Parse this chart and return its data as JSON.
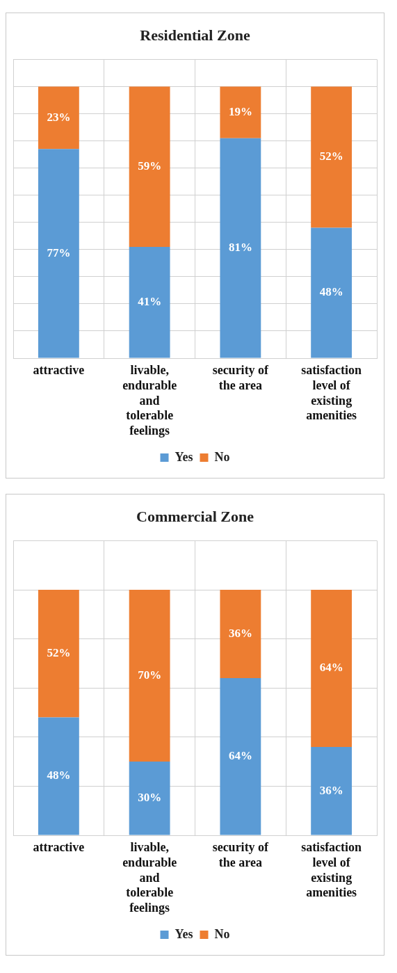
{
  "chart_data": [
    {
      "type": "bar",
      "title": "Residential Zone",
      "categories": [
        "attractive",
        "livable, endurable and tolerable feelings",
        "security of the area",
        "satisfaction level of existing amenities"
      ],
      "stacked": true,
      "ylim": [
        0,
        110
      ],
      "yticks": [
        {
          "value": 0,
          "label": null
        },
        {
          "value": 10,
          "label": null
        },
        {
          "value": 20,
          "label": null
        },
        {
          "value": 30,
          "label": null
        },
        {
          "value": 40,
          "label": null
        },
        {
          "value": 50,
          "label": null
        },
        {
          "value": 60,
          "label": null
        },
        {
          "value": 70,
          "label": null
        },
        {
          "value": 80,
          "label": null
        },
        {
          "value": 90,
          "label": null
        },
        {
          "value": 100,
          "label": null
        },
        {
          "value": 110,
          "label": null
        }
      ],
      "tick_labels": "x",
      "grid": true,
      "legend": "bottom",
      "series": [
        {
          "name": "Yes",
          "color": "#5b9bd5",
          "values": [
            77,
            41,
            81,
            48
          ],
          "value_labels": [
            "77%",
            "41%",
            "81%",
            "48%"
          ]
        },
        {
          "name": "No",
          "color": "#ed7d31",
          "values": [
            23,
            59,
            19,
            52
          ],
          "value_labels": [
            "23%",
            "59%",
            "19%",
            "52%"
          ]
        }
      ]
    },
    {
      "type": "bar",
      "title": "Commercial Zone",
      "categories": [
        "attractive",
        "livable, endurable and tolerable feelings",
        "security of the area",
        "satisfaction level of existing amenities"
      ],
      "stacked": true,
      "ylim": [
        0,
        120
      ],
      "yticks": [
        {
          "value": 0,
          "label": null
        },
        {
          "value": 20,
          "label": null
        },
        {
          "value": 40,
          "label": null
        },
        {
          "value": 60,
          "label": null
        },
        {
          "value": 80,
          "label": null
        },
        {
          "value": 100,
          "label": null
        },
        {
          "value": 120,
          "label": null
        }
      ],
      "tick_labels": "x",
      "grid": true,
      "legend": "bottom",
      "series": [
        {
          "name": "Yes",
          "color": "#5b9bd5",
          "values": [
            48,
            30,
            64,
            36
          ],
          "value_labels": [
            "48%",
            "30%",
            "64%",
            "36%"
          ]
        },
        {
          "name": "No",
          "color": "#ed7d31",
          "values": [
            52,
            70,
            36,
            64
          ],
          "value_labels": [
            "52%",
            "70%",
            "36%",
            "64%"
          ]
        }
      ]
    }
  ]
}
